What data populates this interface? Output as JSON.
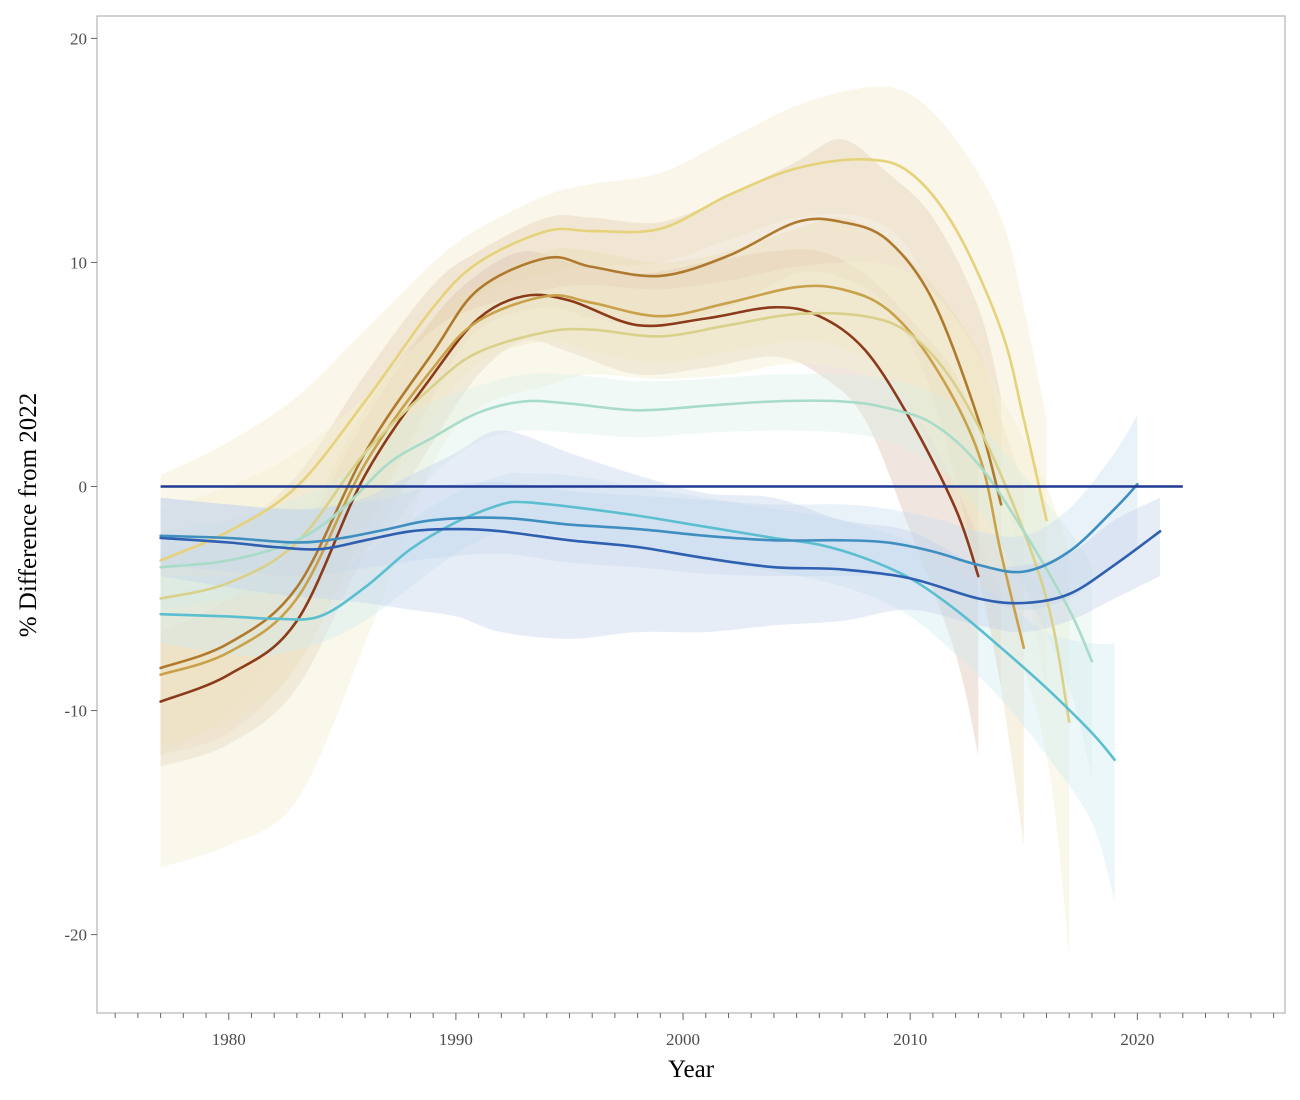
{
  "chart_data": {
    "type": "line",
    "title": "",
    "xlabel": "Year",
    "ylabel": "% Difference from 2022",
    "xlim": [
      1974.2,
      2026.5
    ],
    "ylim": [
      -23.5,
      21.0
    ],
    "x_ticks": [
      1980,
      1990,
      2000,
      2010,
      2020
    ],
    "y_ticks": [
      -20,
      -10,
      0,
      10,
      20
    ],
    "x_tick_labels": [
      "1980",
      "1990",
      "2000",
      "2010",
      "2020"
    ],
    "y_tick_labels": [
      "-20",
      "-10",
      "0",
      "10",
      "20"
    ],
    "grid": false,
    "legend": "none",
    "reference_line": {
      "x": [
        1977,
        2022
      ],
      "y": [
        0,
        0
      ],
      "color": "#1f3a93"
    },
    "series": [
      {
        "color": "#e6d27a",
        "band_color": "#f3eccf",
        "band_opacity": 0.45,
        "points": [
          [
            1977,
            -3.3
          ],
          [
            1980,
            -2.0
          ],
          [
            1983,
            0.0
          ],
          [
            1986,
            3.8
          ],
          [
            1989,
            8.0
          ],
          [
            1991,
            10.0
          ],
          [
            1994,
            11.4
          ],
          [
            1996,
            11.4
          ],
          [
            1999,
            11.5
          ],
          [
            2002,
            13.0
          ],
          [
            2005,
            14.2
          ],
          [
            2008,
            14.6
          ],
          [
            2010,
            14.0
          ],
          [
            2012,
            11.5
          ],
          [
            2014,
            7.0
          ],
          [
            2015,
            3.0
          ],
          [
            2016,
            -1.5
          ]
        ],
        "band_low": [
          -12.0,
          -10.0,
          -6.0,
          -1.0,
          6.0,
          8.5,
          9.5,
          9.8,
          10.0,
          11.0,
          12.0,
          12.0,
          10.5,
          6.0,
          0.0,
          -4.0,
          -9.0
        ],
        "band_high": [
          0.5,
          2.0,
          4.0,
          7.0,
          10.0,
          11.5,
          13.0,
          13.5,
          14.0,
          15.5,
          17.0,
          17.8,
          17.5,
          15.5,
          12.0,
          8.0,
          3.0
        ]
      },
      {
        "color": "#b07a2e",
        "band_color": "#e6d3b8",
        "band_opacity": 0.45,
        "points": [
          [
            1977,
            -8.1
          ],
          [
            1980,
            -7.0
          ],
          [
            1983,
            -4.5
          ],
          [
            1986,
            1.5
          ],
          [
            1989,
            6.0
          ],
          [
            1991,
            8.8
          ],
          [
            1994,
            10.2
          ],
          [
            1996,
            9.8
          ],
          [
            1999,
            9.4
          ],
          [
            2002,
            10.3
          ],
          [
            2005,
            11.8
          ],
          [
            2007,
            11.8
          ],
          [
            2009,
            11.0
          ],
          [
            2011,
            8.3
          ],
          [
            2013,
            3.0
          ],
          [
            2014,
            -0.8
          ]
        ],
        "band_low": [
          -12.0,
          -11.0,
          -8.0,
          -2.0,
          4.0,
          7.0,
          8.0,
          7.5,
          7.2,
          8.0,
          9.5,
          9.3,
          8.0,
          4.0,
          -4.0,
          -9.0
        ],
        "band_high": [
          -3.0,
          -2.0,
          0.5,
          5.0,
          9.0,
          10.5,
          12.0,
          12.0,
          11.8,
          13.0,
          14.5,
          15.5,
          14.0,
          12.0,
          8.0,
          4.0
        ]
      },
      {
        "color": "#8b3a1a",
        "band_color": "#dcc0b0",
        "band_opacity": 0.4,
        "points": [
          [
            1977,
            -9.6
          ],
          [
            1980,
            -8.4
          ],
          [
            1983,
            -6.0
          ],
          [
            1986,
            0.5
          ],
          [
            1989,
            5.0
          ],
          [
            1991,
            7.5
          ],
          [
            1993,
            8.5
          ],
          [
            1995,
            8.3
          ],
          [
            1998,
            7.2
          ],
          [
            2001,
            7.5
          ],
          [
            2004,
            8.0
          ],
          [
            2006,
            7.6
          ],
          [
            2008,
            6.1
          ],
          [
            2010,
            3.0
          ],
          [
            2012,
            -1.0
          ],
          [
            2013,
            -4.0
          ]
        ],
        "band_low": [
          -12.5,
          -11.5,
          -9.0,
          -3.0,
          2.0,
          5.0,
          6.5,
          6.0,
          5.0,
          5.3,
          5.8,
          5.0,
          3.0,
          -2.0,
          -7.5,
          -12.0
        ],
        "band_high": [
          -6.5,
          -5.0,
          -2.5,
          3.0,
          7.5,
          9.5,
          10.5,
          10.0,
          9.5,
          10.0,
          10.5,
          10.5,
          9.5,
          7.5,
          5.0,
          2.0
        ]
      },
      {
        "color": "#c9a14a",
        "band_color": "#ecdcb5",
        "band_opacity": 0.4,
        "points": [
          [
            1977,
            -8.4
          ],
          [
            1980,
            -7.4
          ],
          [
            1983,
            -5.0
          ],
          [
            1986,
            1.0
          ],
          [
            1989,
            5.3
          ],
          [
            1991,
            7.4
          ],
          [
            1994,
            8.5
          ],
          [
            1996,
            8.2
          ],
          [
            1999,
            7.6
          ],
          [
            2002,
            8.2
          ],
          [
            2005,
            8.9
          ],
          [
            2007,
            8.8
          ],
          [
            2009,
            7.9
          ],
          [
            2011,
            5.5
          ],
          [
            2013,
            1.5
          ],
          [
            2014,
            -3.0
          ],
          [
            2015,
            -7.2
          ]
        ],
        "band_low": [
          -11.5,
          -10.5,
          -8.0,
          -2.0,
          3.0,
          5.5,
          6.5,
          6.0,
          5.5,
          6.0,
          6.5,
          6.2,
          5.0,
          1.5,
          -4.0,
          -9.0,
          -16.0
        ],
        "band_high": [
          -5.0,
          -4.0,
          -2.0,
          3.5,
          7.5,
          9.0,
          10.5,
          10.5,
          10.0,
          10.5,
          11.5,
          12.0,
          11.0,
          9.0,
          6.0,
          3.0,
          0.0
        ]
      },
      {
        "color": "#d9d08a",
        "band_color": "#f5f0d2",
        "band_opacity": 0.45,
        "points": [
          [
            1977,
            -5.0
          ],
          [
            1980,
            -4.3
          ],
          [
            1983,
            -2.5
          ],
          [
            1986,
            1.5
          ],
          [
            1989,
            4.5
          ],
          [
            1991,
            6.0
          ],
          [
            1994,
            6.9
          ],
          [
            1996,
            7.0
          ],
          [
            1999,
            6.7
          ],
          [
            2002,
            7.2
          ],
          [
            2005,
            7.7
          ],
          [
            2008,
            7.6
          ],
          [
            2010,
            6.8
          ],
          [
            2012,
            4.5
          ],
          [
            2014,
            0.5
          ],
          [
            2016,
            -5.0
          ],
          [
            2017,
            -10.5
          ]
        ],
        "band_low": [
          -17.0,
          -16.0,
          -14.0,
          -7.0,
          1.0,
          3.5,
          4.5,
          5.0,
          4.8,
          5.0,
          5.5,
          5.0,
          3.5,
          0.0,
          -5.0,
          -12.0,
          -21.0
        ],
        "band_high": [
          -1.0,
          0.0,
          1.5,
          4.0,
          7.0,
          8.0,
          8.8,
          9.0,
          8.8,
          9.2,
          9.8,
          10.0,
          9.5,
          7.5,
          4.0,
          0.0,
          -3.0
        ]
      },
      {
        "color": "#a8dcc8",
        "band_color": "#d5eee4",
        "band_opacity": 0.35,
        "points": [
          [
            1977,
            -3.6
          ],
          [
            1980,
            -3.3
          ],
          [
            1983,
            -2.4
          ],
          [
            1985,
            -1.0
          ],
          [
            1987,
            1.0
          ],
          [
            1989,
            2.2
          ],
          [
            1991,
            3.3
          ],
          [
            1993,
            3.8
          ],
          [
            1995,
            3.7
          ],
          [
            1998,
            3.4
          ],
          [
            2001,
            3.6
          ],
          [
            2004,
            3.8
          ],
          [
            2007,
            3.8
          ],
          [
            2009,
            3.5
          ],
          [
            2011,
            2.8
          ],
          [
            2013,
            1.0
          ],
          [
            2015,
            -2.0
          ],
          [
            2017,
            -5.5
          ],
          [
            2018,
            -7.8
          ]
        ],
        "band_low": [
          -5.5,
          -5.0,
          -4.5,
          -3.5,
          -2.0,
          0.5,
          2.0,
          2.5,
          2.4,
          2.2,
          2.4,
          2.5,
          2.4,
          2.0,
          1.0,
          -1.0,
          -4.5,
          -9.0,
          -13.0
        ],
        "band_high": [
          -2.0,
          -1.5,
          -0.5,
          0.5,
          2.5,
          3.8,
          4.5,
          5.0,
          5.0,
          4.7,
          4.8,
          5.0,
          5.0,
          4.8,
          4.2,
          2.8,
          0.5,
          -2.0,
          -3.5
        ]
      },
      {
        "color": "#5bbfd0",
        "band_color": "#cfeaf2",
        "band_opacity": 0.4,
        "points": [
          [
            1977,
            -5.7
          ],
          [
            1980,
            -5.8
          ],
          [
            1982,
            -5.9
          ],
          [
            1984,
            -5.8
          ],
          [
            1986,
            -4.5
          ],
          [
            1988,
            -2.8
          ],
          [
            1990,
            -1.6
          ],
          [
            1992,
            -0.8
          ],
          [
            1993,
            -0.7
          ],
          [
            1995,
            -0.9
          ],
          [
            1998,
            -1.3
          ],
          [
            2001,
            -1.8
          ],
          [
            2004,
            -2.3
          ],
          [
            2006,
            -2.6
          ],
          [
            2008,
            -3.2
          ],
          [
            2010,
            -4.1
          ],
          [
            2012,
            -5.5
          ],
          [
            2014,
            -7.2
          ],
          [
            2016,
            -9.0
          ],
          [
            2018,
            -11.0
          ],
          [
            2019,
            -12.2
          ]
        ],
        "band_low": [
          -7.0,
          -7.5,
          -7.5,
          -7.0,
          -6.0,
          -4.5,
          -3.0,
          -2.0,
          -2.0,
          -2.3,
          -2.8,
          -3.3,
          -3.8,
          -4.2,
          -4.8,
          -5.8,
          -7.5,
          -9.5,
          -12.0,
          -15.0,
          -18.5
        ],
        "band_high": [
          -4.0,
          -4.0,
          -4.0,
          -4.0,
          -3.0,
          -1.5,
          -0.3,
          0.5,
          0.6,
          0.5,
          0.0,
          -0.5,
          -1.0,
          -1.3,
          -1.8,
          -2.5,
          -3.8,
          -5.0,
          -6.5,
          -7.0,
          -7.0
        ]
      },
      {
        "color": "#3f8ec0",
        "band_color": "#c9dcef",
        "band_opacity": 0.4,
        "points": [
          [
            1977,
            -2.2
          ],
          [
            1980,
            -2.3
          ],
          [
            1983,
            -2.5
          ],
          [
            1985,
            -2.3
          ],
          [
            1987,
            -1.9
          ],
          [
            1989,
            -1.5
          ],
          [
            1992,
            -1.4
          ],
          [
            1995,
            -1.7
          ],
          [
            1998,
            -1.9
          ],
          [
            2001,
            -2.2
          ],
          [
            2004,
            -2.4
          ],
          [
            2007,
            -2.4
          ],
          [
            2009,
            -2.5
          ],
          [
            2011,
            -2.9
          ],
          [
            2013,
            -3.5
          ],
          [
            2015,
            -3.8
          ],
          [
            2017,
            -2.9
          ],
          [
            2019,
            -1.0
          ],
          [
            2020,
            0.1
          ]
        ],
        "band_low": [
          -3.5,
          -3.8,
          -4.0,
          -3.8,
          -3.5,
          -3.2,
          -3.0,
          -3.4,
          -3.6,
          -3.9,
          -4.0,
          -4.0,
          -4.0,
          -4.3,
          -5.0,
          -5.5,
          -5.0,
          -3.5,
          -2.8
        ],
        "band_high": [
          -0.5,
          -0.8,
          -1.0,
          -0.8,
          -0.5,
          0.0,
          0.2,
          -0.2,
          -0.4,
          -0.6,
          -0.8,
          -0.8,
          -1.0,
          -1.4,
          -2.0,
          -2.2,
          -1.0,
          1.5,
          3.2
        ]
      },
      {
        "color": "#2f5fb0",
        "band_color": "#c3d3ec",
        "band_opacity": 0.4,
        "points": [
          [
            1977,
            -2.3
          ],
          [
            1980,
            -2.5
          ],
          [
            1982,
            -2.7
          ],
          [
            1984,
            -2.8
          ],
          [
            1986,
            -2.4
          ],
          [
            1988,
            -2.0
          ],
          [
            1990,
            -1.9
          ],
          [
            1992,
            -2.0
          ],
          [
            1995,
            -2.4
          ],
          [
            1998,
            -2.7
          ],
          [
            2001,
            -3.2
          ],
          [
            2004,
            -3.6
          ],
          [
            2007,
            -3.7
          ],
          [
            2010,
            -4.1
          ],
          [
            2013,
            -5.0
          ],
          [
            2015,
            -5.2
          ],
          [
            2017,
            -4.8
          ],
          [
            2019,
            -3.5
          ],
          [
            2021,
            -2.0
          ]
        ],
        "band_low": [
          -4.0,
          -4.5,
          -4.8,
          -5.0,
          -5.2,
          -5.5,
          -5.8,
          -6.5,
          -6.8,
          -6.5,
          -6.5,
          -6.2,
          -6.0,
          -5.5,
          -6.2,
          -6.5,
          -6.0,
          -5.0,
          -4.0
        ],
        "band_high": [
          -0.5,
          -0.8,
          -1.0,
          -1.0,
          -0.5,
          0.5,
          1.5,
          2.5,
          1.5,
          0.5,
          -0.3,
          -0.5,
          -1.5,
          -2.0,
          -3.5,
          -3.5,
          -3.0,
          -1.5,
          -0.5
        ]
      }
    ]
  }
}
